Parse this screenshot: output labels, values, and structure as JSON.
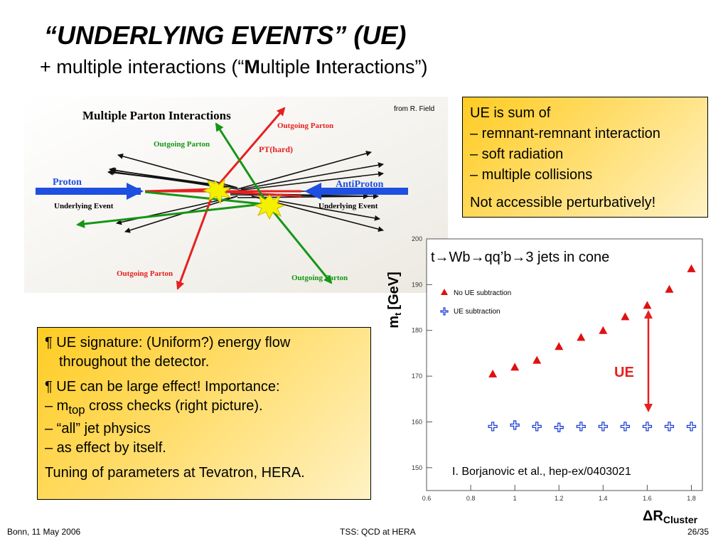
{
  "slide": {
    "title": "“UNDERLYING EVENTS” (UE)",
    "subtitle": {
      "prefix": "+ multiple interactions (“",
      "b1": "M",
      "mid": "ultiple ",
      "b2": "I",
      "suffix": "nteractions”)"
    }
  },
  "diagram": {
    "title": "Multiple Parton Interactions",
    "credit": "from R. Field",
    "labels": {
      "proton": "Proton",
      "antiproton": "AntiProton",
      "ue_left": "Underlying Event",
      "ue_right": "Underlying Event",
      "outgoing_top_right": "Outgoing Parton",
      "outgoing_top_left": "Outgoing Parton",
      "pt_hard": "PT(hard)",
      "outgoing_bottom_left": "Outgoing Parton",
      "outgoing_bottom_right": "Outgoing Parton"
    },
    "colors": {
      "beam": "#1f4fe0",
      "red": "#e62020",
      "green": "#159615",
      "star": "#f4f000"
    }
  },
  "ue_box": {
    "line1": "UE is sum of",
    "line2": "– remnant-remnant interaction",
    "line3": "– soft radiation",
    "line4": "– multiple collisions",
    "line5": "Not accessible perturbatively!"
  },
  "sig_box": {
    "p1_a": "¶ UE signature: (Uniform?) energy flow",
    "p1_b": "throughout the detector.",
    "p2": "¶ UE can be large effect! Importance:",
    "l1_pre": "– m",
    "l1_sub": "top",
    "l1_post": " cross checks (right picture).",
    "l2": "– “all” jet physics",
    "l3": "– as effect by itself.",
    "p3": "Tuning of parameters at Tevatron, HERA."
  },
  "chart_data": {
    "type": "scatter",
    "title": "t→Wb→qq’b→3 jets in cone",
    "ylabel_main": "m",
    "ylabel_sub": "t",
    "ylabel_unit": "[GeV]",
    "xlabel_main": "ΔR",
    "xlabel_sub": "Cluster",
    "xlim": [
      0.6,
      1.85
    ],
    "ylim": [
      145,
      200
    ],
    "x_ticks": [
      "0.6",
      "0.8",
      "1",
      "1.2",
      "1.4",
      "1.6",
      "1.8"
    ],
    "y_ticks": [
      "150",
      "160",
      "170",
      "180",
      "190",
      "200"
    ],
    "annotation": "UE",
    "citation": "I. Borjanovic et al., hep-ex/0403021",
    "series": [
      {
        "name": "No UE subtraction",
        "color": "#e01010",
        "x": [
          0.9,
          1.0,
          1.1,
          1.2,
          1.3,
          1.4,
          1.5,
          1.6,
          1.7,
          1.8
        ],
        "y": [
          170.5,
          172.0,
          173.5,
          176.5,
          178.5,
          180.0,
          183.0,
          185.5,
          189.0,
          193.5
        ]
      },
      {
        "name": "UE subtraction",
        "color": "#1f3fd6",
        "x": [
          0.9,
          1.0,
          1.1,
          1.2,
          1.3,
          1.4,
          1.5,
          1.6,
          1.7,
          1.8
        ],
        "y": [
          159.0,
          159.3,
          159.0,
          158.8,
          159.0,
          159.0,
          159.0,
          159.0,
          159.0,
          159.0
        ]
      }
    ]
  },
  "footer": {
    "left": "Bonn, 11 May 2006",
    "center": "TSS: QCD at HERA",
    "right": "26/35"
  }
}
